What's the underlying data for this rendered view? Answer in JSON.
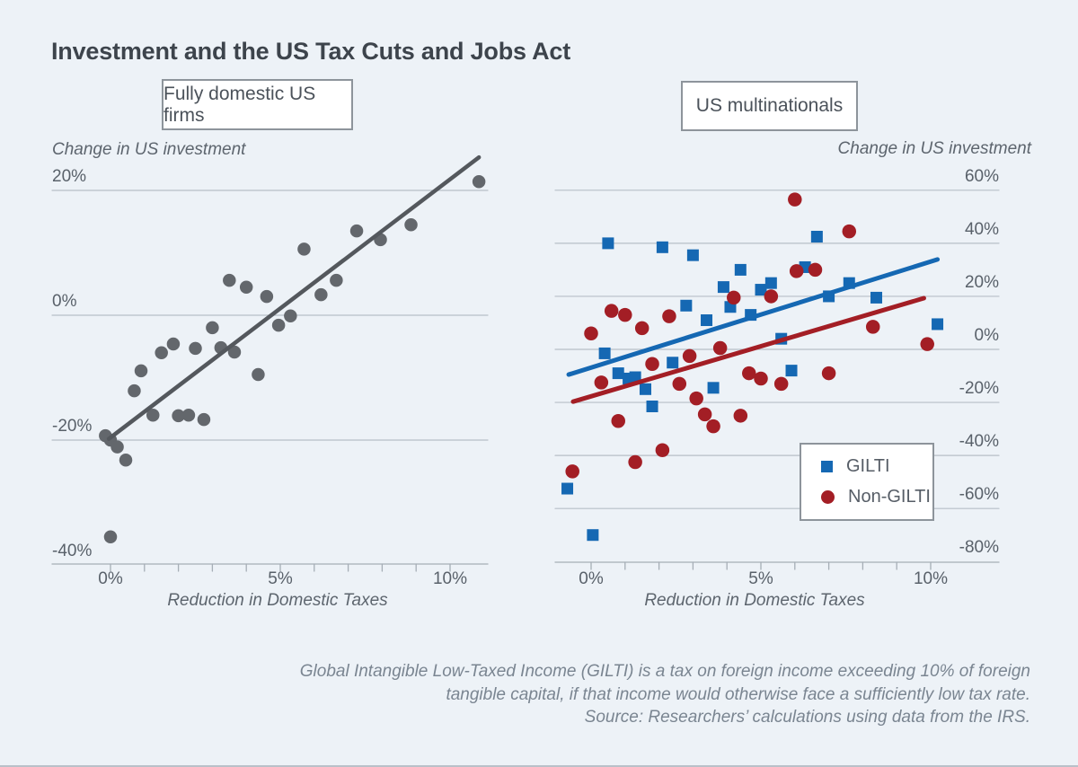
{
  "title": "Investment and the US Tax Cuts and Jobs Act",
  "footnote": {
    "lines": [
      "Global Intangible Low-Taxed Income (GILTI) is a tax on foreign income exceeding 10% of foreign",
      "tangible capital, if that income would otherwise face a sufficiently low tax rate.",
      "Source: Researchers’ calculations using data from the IRS."
    ]
  },
  "colors": {
    "background": "#edf2f7",
    "gridline": "#b7bfc7",
    "axis": "#a6aeb6",
    "domestic_gray": "#63676c",
    "domestic_line_gray": "#54585d",
    "gilti_blue": "#1568b3",
    "non_gilti_red": "#a31e25"
  },
  "chart_data": [
    {
      "type": "scatter",
      "panel_title": "Fully domestic US firms",
      "ylabel": "Change in US investment",
      "xlabel": "Reduction in Domestic Taxes",
      "x_tick_labels": [
        "0%",
        "5%",
        "10%"
      ],
      "x_tick_values": [
        0,
        5,
        10
      ],
      "y_tick_labels": [
        "20%",
        "0%",
        "-20%",
        "-40%"
      ],
      "y_gridlines": [
        20,
        0,
        -20,
        -40
      ],
      "xlim": [
        -1.7,
        11.1
      ],
      "ylim": [
        -40,
        20
      ],
      "grid": true,
      "legend_position": "none",
      "series": [
        {
          "name": "Fully domestic US firms",
          "marker": "circle",
          "size": 14.5,
          "color": "#63676c",
          "points": [
            [
              10.85,
              21.4
            ],
            [
              8.85,
              14.5
            ],
            [
              7.95,
              12.1
            ],
            [
              7.25,
              13.5
            ],
            [
              5.7,
              10.6
            ],
            [
              6.65,
              5.6
            ],
            [
              6.2,
              3.3
            ],
            [
              4.6,
              3.0
            ],
            [
              3.5,
              5.6
            ],
            [
              4.0,
              4.5
            ],
            [
              5.3,
              -0.1
            ],
            [
              4.95,
              -1.6
            ],
            [
              3.0,
              -2.0
            ],
            [
              3.25,
              -5.2
            ],
            [
              3.65,
              -5.9
            ],
            [
              2.5,
              -5.3
            ],
            [
              1.85,
              -4.6
            ],
            [
              1.5,
              -6.0
            ],
            [
              0.9,
              -8.9
            ],
            [
              0.7,
              -12.1
            ],
            [
              1.25,
              -16.0
            ],
            [
              2.0,
              -16.1
            ],
            [
              2.3,
              -16.0
            ],
            [
              2.75,
              -16.7
            ],
            [
              4.35,
              -9.5
            ],
            [
              -0.15,
              -19.3
            ],
            [
              0.0,
              -20.0
            ],
            [
              0.2,
              -21.1
            ],
            [
              0.45,
              -23.2
            ],
            [
              0.0,
              -35.5
            ]
          ]
        }
      ],
      "trendlines": [
        {
          "series": "Fully domestic US firms",
          "color": "#54585d",
          "width": 4.5,
          "x1": -0.05,
          "y1": -19.8,
          "x2": 10.85,
          "y2": 25.3
        }
      ]
    },
    {
      "type": "scatter",
      "panel_title": "US multinationals",
      "ylabel": "Change in US investment",
      "xlabel": "Reduction in Domestic Taxes",
      "x_tick_labels": [
        "0%",
        "5%",
        "10%"
      ],
      "x_tick_values": [
        0,
        5,
        10
      ],
      "y_tick_labels": [
        "60%",
        "40%",
        "20%",
        "0%",
        "-20%",
        "-40%",
        "-60%",
        "-80%"
      ],
      "y_gridlines": [
        60,
        40,
        20,
        0,
        -20,
        -40,
        -60,
        -80
      ],
      "xlim": [
        -1.1,
        12.0
      ],
      "ylim": [
        -80,
        60
      ],
      "grid": true,
      "legend_position": "inside-lower-right",
      "series": [
        {
          "name": "GILTI",
          "marker": "square",
          "size": 13,
          "color": "#1568b3",
          "points": [
            [
              0.5,
              40
            ],
            [
              2.1,
              38.5
            ],
            [
              3.0,
              35.5
            ],
            [
              4.4,
              30
            ],
            [
              3.9,
              23.5
            ],
            [
              5.3,
              25
            ],
            [
              5.0,
              22.5
            ],
            [
              6.3,
              31
            ],
            [
              6.65,
              42.5
            ],
            [
              7.0,
              20
            ],
            [
              7.6,
              25
            ],
            [
              2.8,
              16.5
            ],
            [
              3.4,
              11
            ],
            [
              4.1,
              16
            ],
            [
              4.7,
              13
            ],
            [
              8.4,
              19.5
            ],
            [
              10.2,
              9.5
            ],
            [
              5.6,
              4
            ],
            [
              0.4,
              -1.5
            ],
            [
              2.4,
              -5
            ],
            [
              0.8,
              -9
            ],
            [
              1.1,
              -11
            ],
            [
              1.3,
              -10.5
            ],
            [
              1.6,
              -15
            ],
            [
              1.8,
              -21.5
            ],
            [
              3.6,
              -14.5
            ],
            [
              5.9,
              -8
            ],
            [
              -0.7,
              -52.5
            ],
            [
              0.05,
              -70
            ]
          ]
        },
        {
          "name": "Non-GILTI",
          "marker": "circle",
          "size": 15.5,
          "color": "#a31e25",
          "points": [
            [
              6.0,
              56.5
            ],
            [
              7.6,
              44.5
            ],
            [
              6.05,
              29.5
            ],
            [
              6.6,
              30
            ],
            [
              4.2,
              19.5
            ],
            [
              5.3,
              20
            ],
            [
              0.6,
              14.5
            ],
            [
              1.0,
              13
            ],
            [
              2.3,
              12.5
            ],
            [
              1.5,
              8
            ],
            [
              0.0,
              6
            ],
            [
              8.3,
              8.5
            ],
            [
              9.9,
              2
            ],
            [
              3.8,
              0.5
            ],
            [
              2.9,
              -2.5
            ],
            [
              1.8,
              -5.5
            ],
            [
              0.3,
              -12.5
            ],
            [
              2.6,
              -13
            ],
            [
              3.1,
              -18.5
            ],
            [
              3.35,
              -24.5
            ],
            [
              3.6,
              -29
            ],
            [
              4.4,
              -25
            ],
            [
              4.65,
              -9
            ],
            [
              5.0,
              -11
            ],
            [
              5.6,
              -13
            ],
            [
              7.0,
              -9
            ],
            [
              0.8,
              -27
            ],
            [
              1.3,
              -42.5
            ],
            [
              2.1,
              -38
            ],
            [
              -0.55,
              -46
            ]
          ]
        }
      ],
      "trendlines": [
        {
          "series": "GILTI",
          "color": "#1568b3",
          "width": 5,
          "x1": -0.66,
          "y1": -9.5,
          "x2": 10.2,
          "y2": 33.9
        },
        {
          "series": "Non-GILTI",
          "color": "#a31e25",
          "width": 5,
          "x1": -0.53,
          "y1": -19.7,
          "x2": 9.8,
          "y2": 19.3
        }
      ]
    }
  ]
}
